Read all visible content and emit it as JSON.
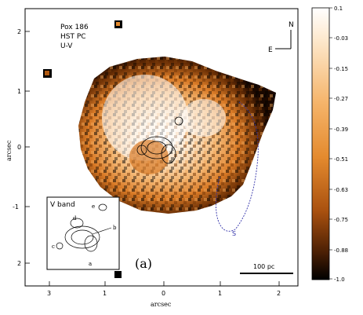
{
  "panel": {
    "object": "Pox 186",
    "instrument": "HST PC",
    "filter": "U-V",
    "panel_tag": "(a)"
  },
  "compass": {
    "north": "N",
    "east": "E"
  },
  "scale_bar": {
    "label": "100 pc"
  },
  "feature_marker": "S",
  "inset": {
    "title": "V band",
    "letters": [
      "a",
      "b",
      "c",
      "d",
      "e"
    ]
  },
  "axes": {
    "x_label": "arcsec",
    "y_label": "arcsec",
    "x_ticks": [
      "3",
      "1",
      "0",
      "1",
      "2"
    ],
    "y_ticks": [
      "2",
      "1",
      "0",
      "-1",
      "2"
    ]
  },
  "colorbar": {
    "ticks": [
      "0.1",
      "-0.03",
      "-0.15",
      "-0.27",
      "-0.39",
      "-0.51",
      "-0.63",
      "-0.75",
      "-0.88",
      "-1.0"
    ]
  },
  "colors": {
    "light": "#fde8cc",
    "mid": "#e48a2e",
    "dark": "#6b2f05",
    "black": "#000000",
    "contour_blue": "#3333aa"
  }
}
